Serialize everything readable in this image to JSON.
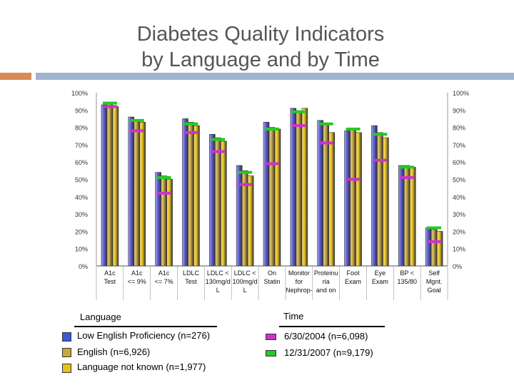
{
  "slide": {
    "title_line1": "Diabetes Quality Indicators",
    "title_line2": "by Language and by Time"
  },
  "chart_data": {
    "type": "bar",
    "categories": [
      [
        "A1c",
        "Test"
      ],
      [
        "A1c",
        "<= 9%"
      ],
      [
        "A1c",
        "<= 7%"
      ],
      [
        "LDLC",
        "Test"
      ],
      [
        "LDLC <",
        "130mg/d",
        "L"
      ],
      [
        "LDLC <",
        "100mg/d",
        "L"
      ],
      [
        "On",
        "Statin"
      ],
      [
        "Monitor",
        "for",
        "Nephrop-"
      ],
      [
        "Proteinu",
        "ria",
        "and on"
      ],
      [
        "Foot",
        "Exam"
      ],
      [
        "Eye",
        "Exam"
      ],
      [
        "BP <",
        "135/80"
      ],
      [
        "Self",
        "Mgnt.",
        "Goal"
      ]
    ],
    "series": [
      {
        "name": "Low English Proficiency (n=276)",
        "kind": "bar",
        "color": "#5a5ad6",
        "values": [
          93,
          86,
          54,
          85,
          76,
          58,
          83,
          91,
          84,
          78,
          81,
          58,
          22
        ]
      },
      {
        "name": "English (n=6,926)",
        "kind": "bar",
        "color": "#c8a640",
        "values": [
          94,
          84,
          52,
          83,
          74,
          55,
          80,
          89,
          82,
          79,
          77,
          58,
          21
        ]
      },
      {
        "name": "Language not known (n=1,977)",
        "kind": "bar",
        "color": "#e8c21a",
        "values": [
          92,
          83,
          50,
          81,
          72,
          52,
          79,
          91,
          77,
          77,
          74,
          57,
          20
        ]
      },
      {
        "name": "6/30/2004 (n=6,098)",
        "kind": "marker",
        "color": "#cc33cc",
        "values": [
          92,
          78,
          42,
          77,
          66,
          47,
          59,
          81,
          71,
          50,
          61,
          51,
          14
        ]
      },
      {
        "name": "12/31/2007 (n=9,179)",
        "kind": "marker",
        "color": "#22cc22",
        "values": [
          94,
          84,
          51,
          82,
          73,
          54,
          79,
          89,
          82,
          79,
          76,
          57,
          22
        ]
      }
    ],
    "y_ticks": [
      "0%",
      "10%",
      "20%",
      "30%",
      "40%",
      "50%",
      "60%",
      "70%",
      "80%",
      "90%",
      "100%"
    ],
    "ylim": [
      0,
      100
    ],
    "grid": false,
    "legend_placement": "bottom"
  },
  "legend": {
    "language_heading": "Language",
    "time_heading": "Time",
    "language_items": [
      {
        "label": "Low English Proficiency (n=276)",
        "color": "#3a5ad6"
      },
      {
        "label": "English (n=6,926)",
        "color": "#c8a640"
      },
      {
        "label": "Language not known (n=1,977)",
        "color": "#e8c21a"
      }
    ],
    "time_items": [
      {
        "label": "6/30/2004 (n=6,098)",
        "color": "#cc33cc"
      },
      {
        "label": "12/31/2007 (n=9,179)",
        "color": "#22cc22"
      }
    ]
  }
}
